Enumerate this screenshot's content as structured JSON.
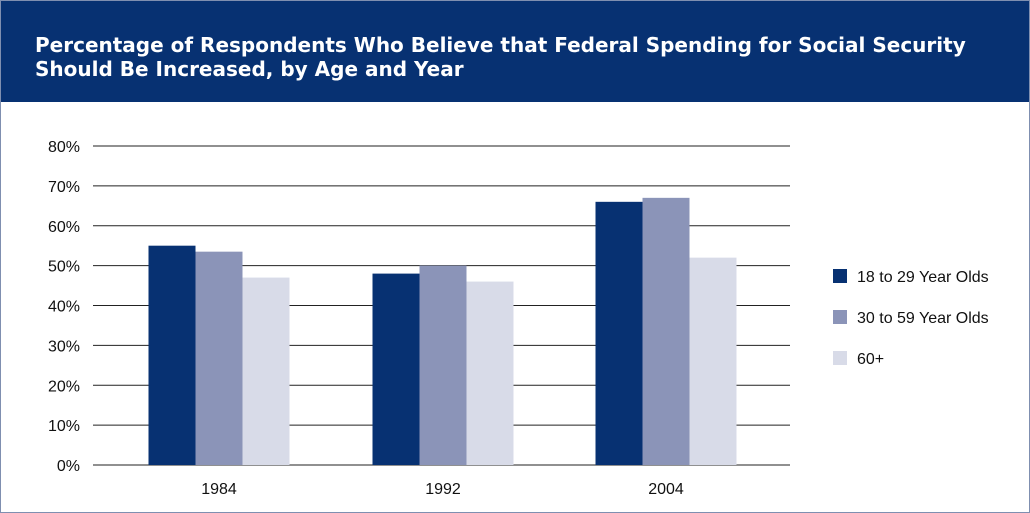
{
  "chart_data": {
    "type": "bar",
    "title": "Percentage of Respondents Who Believe that Federal Spending for Social Security Should Be Increased, by Age and Year",
    "categories": [
      "1984",
      "1992",
      "2004"
    ],
    "series": [
      {
        "name": "18 to 29 Year Olds",
        "values": [
          55,
          48,
          66
        ],
        "color": "#073172"
      },
      {
        "name": "30 to 59 Year Olds",
        "values": [
          53.5,
          50,
          67
        ],
        "color": "#8b94b8"
      },
      {
        "name": "60+",
        "values": [
          47,
          46,
          52
        ],
        "color": "#d8dbe8"
      }
    ],
    "ylim": [
      0,
      80
    ],
    "yticks": [
      "0%",
      "10%",
      "20%",
      "30%",
      "40%",
      "50%",
      "60%",
      "70%",
      "80%"
    ],
    "grid": true,
    "legend_position": "right"
  }
}
